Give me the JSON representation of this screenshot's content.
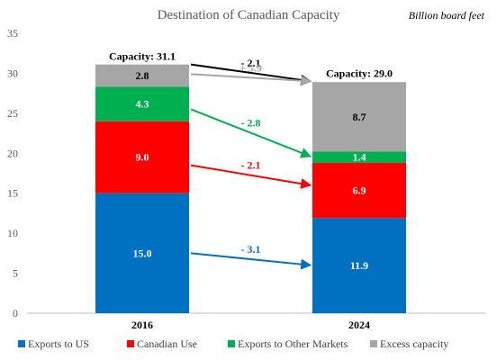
{
  "chart_data": {
    "type": "bar",
    "stacked": true,
    "title": "Destination of Canadian Capacity",
    "subtitle": "Billion board feet",
    "categories": [
      "2016",
      "2024"
    ],
    "ylim": [
      0,
      35
    ],
    "yticks": [
      0,
      5,
      10,
      15,
      20,
      25,
      30,
      35
    ],
    "gridlines": false,
    "legend_position": "bottom",
    "series": [
      {
        "name": "Exports to US",
        "color": "#0070C0",
        "values": [
          15.0,
          11.9
        ],
        "labels": [
          "15.0",
          "11.9"
        ],
        "label_color": "#ffffff"
      },
      {
        "name": "Canadian Use",
        "color": "#FF0000",
        "values": [
          9.0,
          6.9
        ],
        "labels": [
          "9.0",
          "6.9"
        ],
        "label_color": "#ffffff"
      },
      {
        "name": "Exports to Other Markets",
        "color": "#00B050",
        "values": [
          4.3,
          1.4
        ],
        "labels": [
          "4.3",
          "1.4"
        ],
        "label_color": "#ffffff"
      },
      {
        "name": "Excess capacity",
        "color": "#A6A6A6",
        "values": [
          2.8,
          8.7
        ],
        "labels": [
          "2.8",
          "8.7"
        ],
        "label_color": "#000000"
      }
    ],
    "totals": [
      {
        "label": "Capacity: 31.1",
        "value": 31.1
      },
      {
        "label": "Capacity: 29.0",
        "value": 29.0
      }
    ],
    "change_arrows": [
      {
        "label": "- 2.1",
        "color": "#000000",
        "from": 31.1,
        "to": 29.0
      },
      {
        "label": "+ 5.9",
        "color": "#A6A6A6",
        "from": 29.9,
        "to": 29.0
      },
      {
        "label": "- 2.8",
        "color": "#00B050",
        "from": 25.5,
        "to": 19.6
      },
      {
        "label": "- 2.1",
        "color": "#FF0000",
        "from": 18.5,
        "to": 16.0
      },
      {
        "label": "- 3.1",
        "color": "#0070C0",
        "from": 7.5,
        "to": 6.0
      }
    ]
  }
}
